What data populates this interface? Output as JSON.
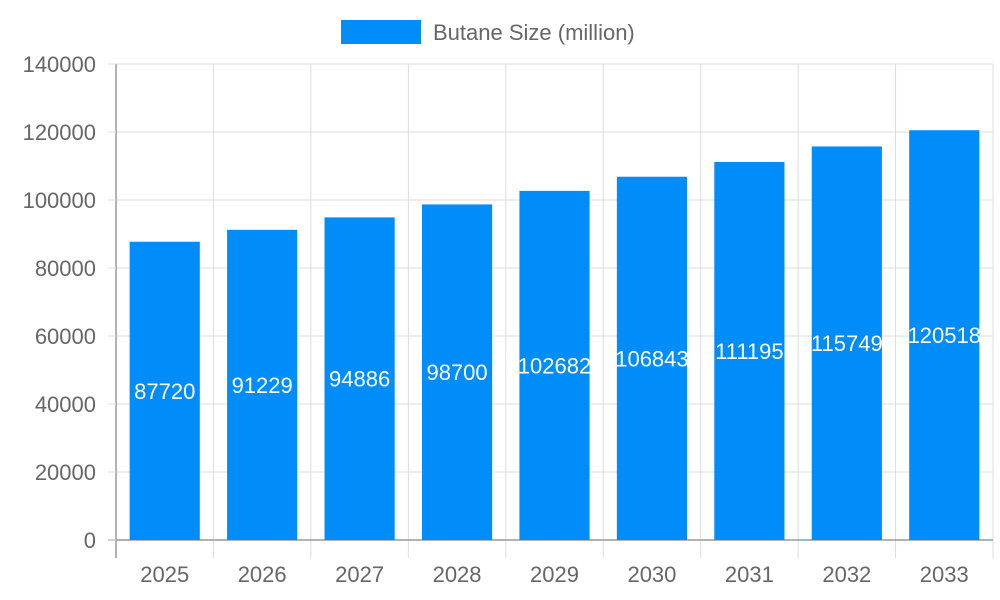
{
  "chart_data": {
    "type": "bar",
    "categories": [
      "2025",
      "2026",
      "2027",
      "2028",
      "2029",
      "2030",
      "2031",
      "2032",
      "2033"
    ],
    "series": [
      {
        "name": "Butane Size (million)",
        "values": [
          87720,
          91229,
          94886,
          98700,
          102682,
          106843,
          111195,
          115749,
          120518
        ],
        "data_labels": [
          "87720",
          "91229",
          "94886",
          "98700",
          "102682",
          "106843",
          "111195",
          "115749",
          "120518"
        ]
      }
    ],
    "yticks": [
      "0",
      "20000",
      "40000",
      "60000",
      "80000",
      "100000",
      "120000",
      "140000"
    ],
    "ylim": [
      0,
      140000
    ],
    "grid": true,
    "legend_position": "top-center",
    "colors": {
      "bar": "#008cf9",
      "grid": "#dddddd",
      "axis": "#999999",
      "tick_text": "#666666",
      "data_label": "#ffffff"
    }
  }
}
